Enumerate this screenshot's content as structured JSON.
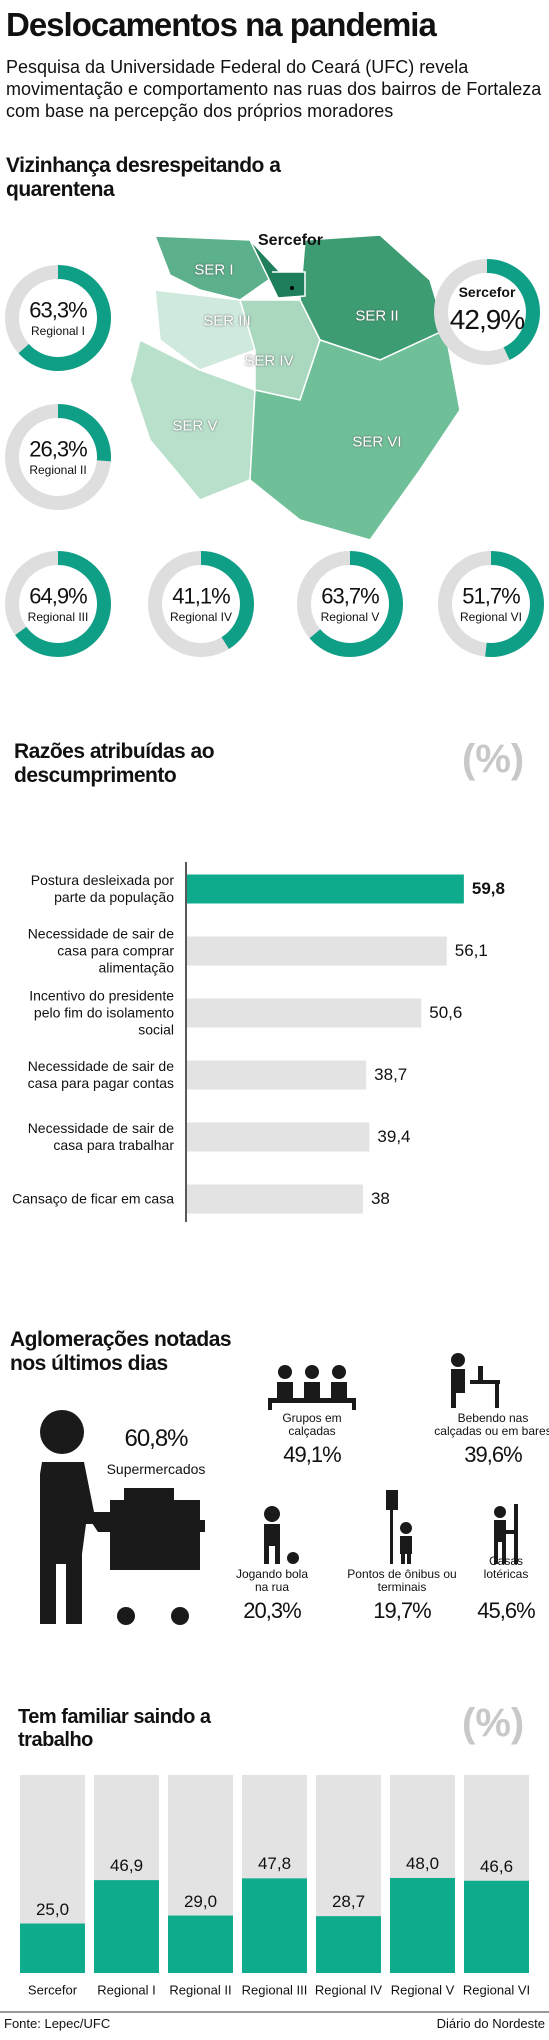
{
  "header": {
    "title": "Deslocamentos na pandemia",
    "subtitle": "Pesquisa da Universidade Federal do Ceará (UFC) revela movimentação e comportamento nas ruas dos bairros de Fortaleza com base na percepção dos próprios moradores"
  },
  "chart_data": [
    {
      "type": "donut",
      "title": "Vizinhança desrespeitando a quarentena",
      "categories": [
        "Sercefor",
        "Regional I",
        "Regional II",
        "Regional III",
        "Regional IV",
        "Regional V",
        "Regional VI"
      ],
      "values": [
        42.9,
        63.3,
        26.3,
        64.9,
        41.1,
        63.7,
        51.7
      ],
      "value_labels": [
        "42,9%",
        "63,3%",
        "26,3%",
        "64,9%",
        "41,1%",
        "63,7%",
        "51,7%"
      ],
      "color": "#0e9f86",
      "track_color": "#dedede"
    },
    {
      "type": "bar",
      "orientation": "horizontal",
      "title": "Razões atribuídas ao descumprimento",
      "unit": "(%)",
      "categories": [
        "Postura desleixada por parte da população",
        "Necessidade de sair de casa para comprar alimentação",
        "Incentivo do presidente pelo fim do isolamento social",
        "Necessidade de sair de casa para pagar contas",
        "Necessidade de sair de casa para trabalhar",
        "Cansaço de ficar em casa"
      ],
      "values": [
        59.8,
        56.1,
        50.6,
        38.7,
        39.4,
        38
      ],
      "value_labels": [
        "59,8",
        "56,1",
        "50,6",
        "38,7",
        "39,4",
        "38"
      ],
      "colors": [
        "#0eab8c",
        "#e3e3e3",
        "#e3e3e3",
        "#e3e3e3",
        "#e3e3e3",
        "#e3e3e3"
      ]
    },
    {
      "type": "bar",
      "orientation": "vertical",
      "title": "Tem familiar saindo a trabalho",
      "unit": "(%)",
      "categories": [
        "Sercefor",
        "Regional I",
        "Regional II",
        "Regional III",
        "Regional IV",
        "Regional V",
        "Regional VI"
      ],
      "values": [
        25.0,
        46.9,
        29.0,
        47.8,
        28.7,
        48.0,
        46.6
      ],
      "value_labels": [
        "25,0",
        "46,9",
        "29,0",
        "47,8",
        "28,7",
        "48,0",
        "46,6"
      ],
      "color": "#0eab8c",
      "track_color": "#e3e3e3"
    }
  ],
  "map": {
    "highlight": "Sercefor",
    "labels": [
      "SER I",
      "SER II",
      "SER III",
      "SER IV",
      "SER V",
      "SER VI"
    ]
  },
  "crowds": {
    "title": "Aglomerações notadas nos últimos dias",
    "items": [
      {
        "label": "Supermercados",
        "value": "60,8%"
      },
      {
        "label": "Grupos em calçadas",
        "value": "49,1%"
      },
      {
        "label": "Bebendo nas calçadas ou em bares",
        "value": "39,6%"
      },
      {
        "label": "Jogando bola na rua",
        "value": "20,3%"
      },
      {
        "label": "Pontos de ônibus ou terminais",
        "value": "19,7%"
      },
      {
        "label": "Casas lotéricas",
        "value": "45,6%"
      }
    ]
  },
  "footer": {
    "source": "Fonte: Lepec/UFC",
    "credit": "Diário do Nordeste"
  }
}
